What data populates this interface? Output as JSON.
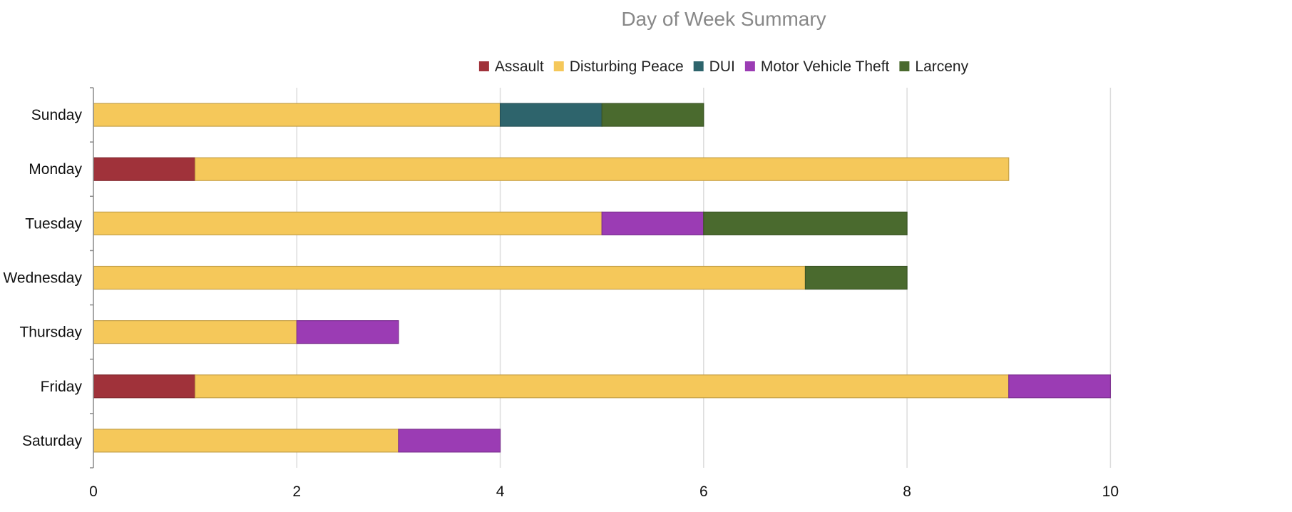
{
  "chart_data": {
    "type": "bar",
    "orientation": "horizontal",
    "stacked": true,
    "title": "Day of Week Summary",
    "xlabel": "",
    "ylabel": "",
    "categories": [
      "Sunday",
      "Monday",
      "Tuesday",
      "Wednesday",
      "Thursday",
      "Friday",
      "Saturday"
    ],
    "xlim": [
      0,
      11
    ],
    "x_ticks": [
      0,
      2,
      4,
      6,
      8,
      10
    ],
    "grid": true,
    "legend_position": "top-center",
    "series": [
      {
        "name": "Assault",
        "color": "#a0323a",
        "values": [
          0,
          1,
          0,
          0,
          0,
          1,
          0
        ]
      },
      {
        "name": "Disturbing Peace",
        "color": "#f5c85a",
        "values": [
          4,
          8,
          5,
          7,
          2,
          8,
          3
        ]
      },
      {
        "name": "DUI",
        "color": "#2e646c",
        "values": [
          1,
          0,
          0,
          0,
          0,
          0,
          0
        ]
      },
      {
        "name": "Motor Vehicle Theft",
        "color": "#9b3cb4",
        "values": [
          0,
          0,
          1,
          0,
          1,
          1,
          1
        ]
      },
      {
        "name": "Larceny",
        "color": "#4a6a2e",
        "values": [
          1,
          0,
          2,
          1,
          0,
          0,
          0
        ]
      }
    ]
  }
}
